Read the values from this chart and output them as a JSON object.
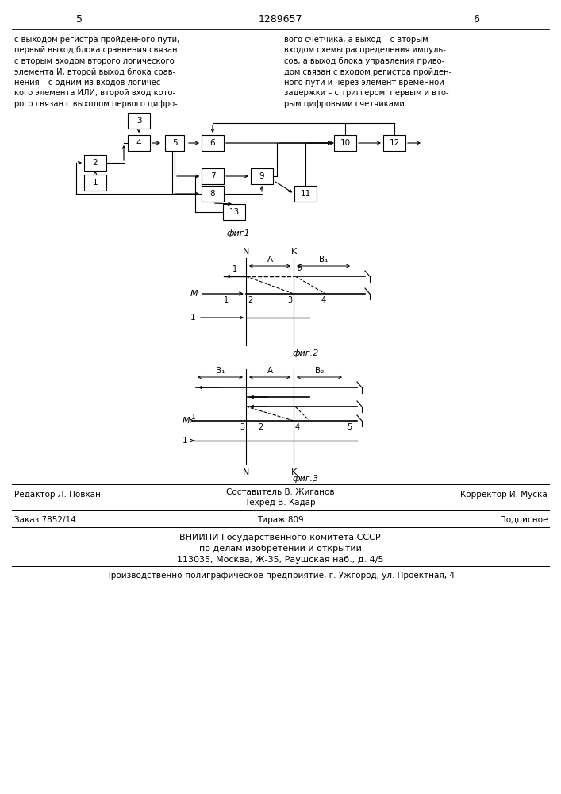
{
  "page_num_left": "5",
  "page_num_center": "1289657",
  "page_num_right": "6",
  "fig1_label": "фиг1",
  "fig2_label": "фиг.2",
  "fig3_label": "фиг.3",
  "footer_line1_left": "Редактор Л. Повхан",
  "footer_sostavitel": "Составитель В. Жиганов",
  "footer_tekhred": "Техред В. Кадар",
  "footer_line1_right": "Корректор И. Муска",
  "footer_line2_left": "Заказ 7852/14",
  "footer_line2_center": "Тираж 809",
  "footer_line2_right": "Подписное",
  "footer_vniipи": "ВНИИПИ Государственного комитета СССР",
  "footer_po": "по делам изобретений и открытий",
  "footer_address": "113035, Москва, Ж-35, Раушская наб., д. 4/5",
  "footer_predpr": "Производственно-полиграфическое предприятие, г. Ужгород, ул. Проектная, 4",
  "bg_color": "#ffffff",
  "text_color": "#000000"
}
